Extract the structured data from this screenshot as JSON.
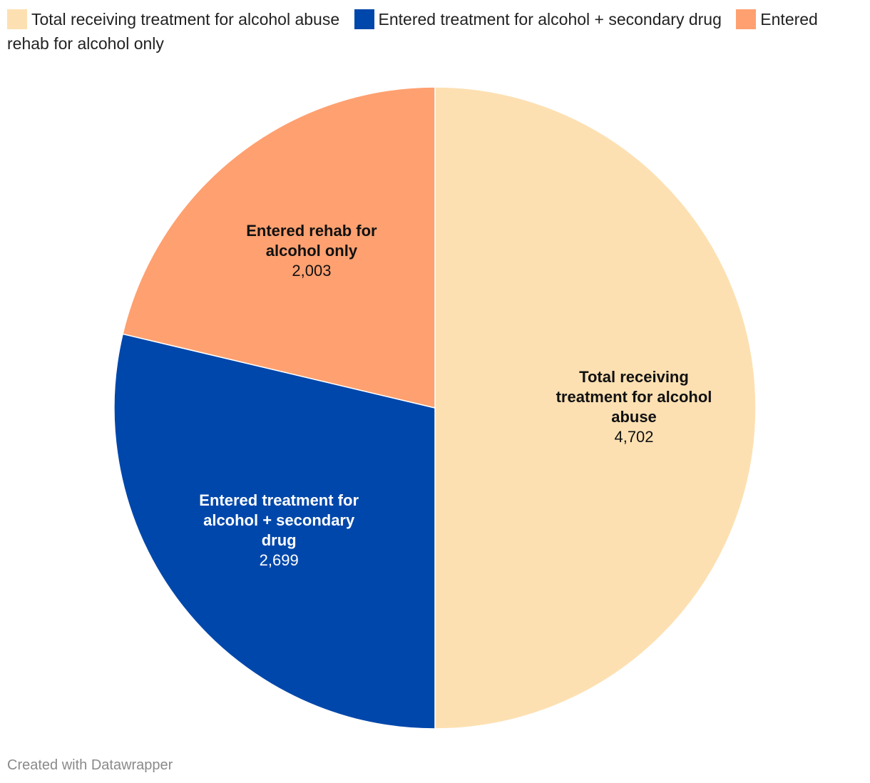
{
  "chart_data": {
    "type": "pie",
    "title": "",
    "categories": [
      "Total receiving treatment for alcohol abuse",
      "Entered treatment for alcohol + secondary drug",
      "Entered rehab for alcohol only"
    ],
    "values": [
      4702,
      2699,
      2003
    ],
    "value_labels": [
      "4,702",
      "2,699",
      "2,003"
    ],
    "slice_label_lines": [
      [
        "Total receiving",
        "treatment for alcohol",
        "abuse"
      ],
      [
        "Entered treatment for",
        "alcohol + secondary",
        "drug"
      ],
      [
        "Entered rehab for",
        "alcohol only"
      ]
    ],
    "colors": [
      "#fde0b2",
      "#0047ab",
      "#ffa070"
    ],
    "label_colors": [
      "#111111",
      "#ffffff",
      "#111111"
    ],
    "legend_position": "top"
  },
  "footer": {
    "credit": "Created with Datawrapper"
  }
}
